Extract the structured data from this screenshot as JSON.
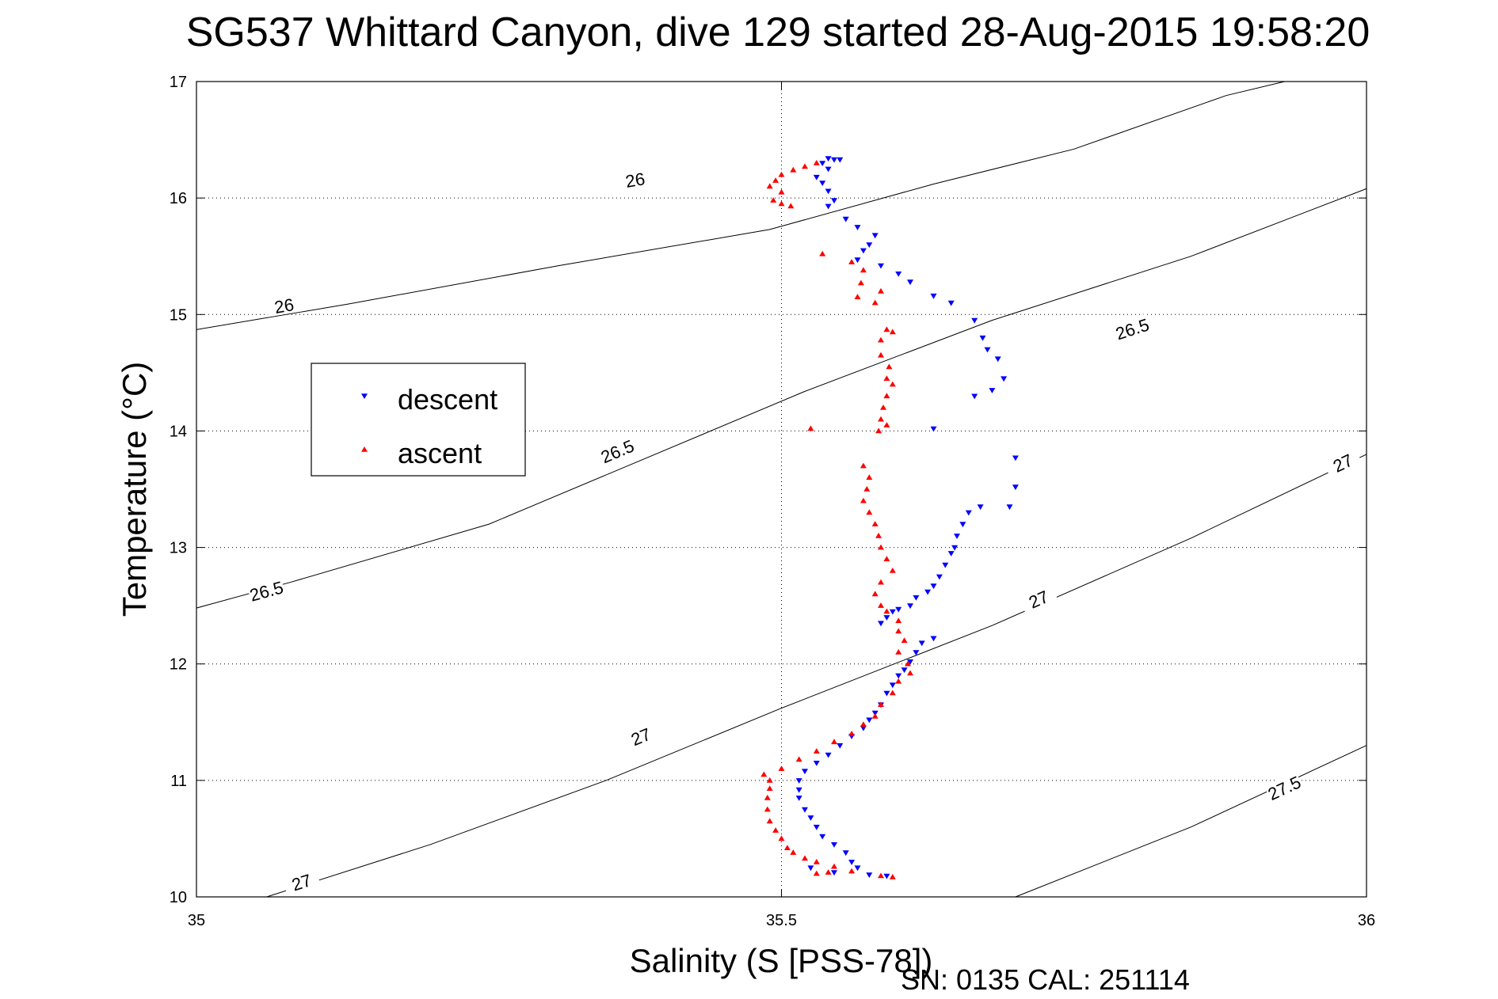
{
  "chart_data": {
    "type": "scatter",
    "title": "SG537 Whittard Canyon, dive 129 started 28-Aug-2015 19:58:20",
    "xlabel": "Salinity (S [PSS-78])",
    "ylabel": "Temperature (°C)",
    "xlim": [
      35,
      36
    ],
    "ylim": [
      10,
      17
    ],
    "x_ticks": [
      "35",
      "35.5",
      "36"
    ],
    "y_ticks": [
      "10",
      "11",
      "12",
      "13",
      "14",
      "15",
      "16",
      "17"
    ],
    "grid": true,
    "legend_position": "upper-left",
    "footer_text": "SN: 0135  CAL: 251114",
    "isopycnals": [
      {
        "label": "26",
        "points": [
          [
            35,
            14.87
          ],
          [
            35.13,
            15.09
          ],
          [
            35.31,
            15.42
          ],
          [
            35.49,
            15.73
          ],
          [
            35.63,
            16.12
          ],
          [
            35.75,
            16.42
          ],
          [
            35.88,
            16.88
          ],
          [
            35.93,
            17.0
          ]
        ],
        "labels_at": [
          [
            35.075,
            15.07
          ],
          [
            35.375,
            16.15
          ]
        ]
      },
      {
        "label": "26.5",
        "points": [
          [
            35,
            12.48
          ],
          [
            35.08,
            12.7
          ],
          [
            35.25,
            13.2
          ],
          [
            35.52,
            14.34
          ],
          [
            35.68,
            14.95
          ],
          [
            35.85,
            15.5
          ],
          [
            36,
            16.08
          ]
        ],
        "labels_at": [
          [
            35.06,
            12.62
          ],
          [
            35.36,
            13.82
          ],
          [
            35.8,
            14.87
          ]
        ]
      },
      {
        "label": "27",
        "points": [
          [
            35.06,
            10.0
          ],
          [
            35.2,
            10.45
          ],
          [
            35.35,
            11.0
          ],
          [
            35.5,
            11.62
          ],
          [
            35.68,
            12.33
          ],
          [
            35.85,
            13.08
          ],
          [
            36,
            13.8
          ]
        ],
        "labels_at": [
          [
            35.09,
            10.12
          ],
          [
            35.38,
            11.37
          ],
          [
            35.72,
            12.55
          ],
          [
            35.98,
            13.72
          ]
        ]
      },
      {
        "label": "27.5",
        "points": [
          [
            35.7,
            10.0
          ],
          [
            35.85,
            10.6
          ],
          [
            36,
            11.3
          ]
        ],
        "labels_at": [
          [
            35.93,
            10.93
          ]
        ]
      }
    ],
    "series": [
      {
        "name": "descent",
        "color": "#0000ff",
        "marker": "triangle-down",
        "points": [
          [
            35.54,
            16.34
          ],
          [
            35.545,
            16.33
          ],
          [
            35.55,
            16.33
          ],
          [
            35.535,
            16.3
          ],
          [
            35.54,
            16.25
          ],
          [
            35.53,
            16.18
          ],
          [
            35.535,
            16.13
          ],
          [
            35.54,
            16.06
          ],
          [
            35.545,
            15.98
          ],
          [
            35.54,
            15.93
          ],
          [
            35.555,
            15.82
          ],
          [
            35.565,
            15.75
          ],
          [
            35.58,
            15.68
          ],
          [
            35.575,
            15.6
          ],
          [
            35.57,
            15.55
          ],
          [
            35.565,
            15.47
          ],
          [
            35.585,
            15.42
          ],
          [
            35.6,
            15.35
          ],
          [
            35.61,
            15.28
          ],
          [
            35.63,
            15.16
          ],
          [
            35.645,
            15.1
          ],
          [
            35.665,
            14.95
          ],
          [
            35.672,
            14.8
          ],
          [
            35.676,
            14.7
          ],
          [
            35.685,
            14.62
          ],
          [
            35.69,
            14.45
          ],
          [
            35.68,
            14.35
          ],
          [
            35.665,
            14.3
          ],
          [
            35.63,
            14.02
          ],
          [
            35.7,
            13.77
          ],
          [
            35.7,
            13.52
          ],
          [
            35.695,
            13.35
          ],
          [
            35.67,
            13.35
          ],
          [
            35.66,
            13.3
          ],
          [
            35.655,
            13.2
          ],
          [
            35.65,
            13.1
          ],
          [
            35.648,
            13.0
          ],
          [
            35.645,
            12.95
          ],
          [
            35.64,
            12.85
          ],
          [
            35.635,
            12.75
          ],
          [
            35.63,
            12.67
          ],
          [
            35.625,
            12.62
          ],
          [
            35.615,
            12.57
          ],
          [
            35.61,
            12.5
          ],
          [
            35.6,
            12.47
          ],
          [
            35.595,
            12.45
          ],
          [
            35.59,
            12.4
          ],
          [
            35.585,
            12.35
          ],
          [
            35.63,
            12.22
          ],
          [
            35.62,
            12.18
          ],
          [
            35.615,
            12.1
          ],
          [
            35.61,
            12.02
          ],
          [
            35.605,
            11.95
          ],
          [
            35.6,
            11.9
          ],
          [
            35.595,
            11.82
          ],
          [
            35.59,
            11.75
          ],
          [
            35.585,
            11.65
          ],
          [
            35.58,
            11.58
          ],
          [
            35.575,
            11.52
          ],
          [
            35.57,
            11.45
          ],
          [
            35.56,
            11.38
          ],
          [
            35.55,
            11.3
          ],
          [
            35.54,
            11.22
          ],
          [
            35.53,
            11.15
          ],
          [
            35.52,
            11.08
          ],
          [
            35.515,
            11.0
          ],
          [
            35.515,
            10.92
          ],
          [
            35.515,
            10.85
          ],
          [
            35.52,
            10.75
          ],
          [
            35.525,
            10.68
          ],
          [
            35.53,
            10.6
          ],
          [
            35.535,
            10.52
          ],
          [
            35.545,
            10.45
          ],
          [
            35.555,
            10.38
          ],
          [
            35.56,
            10.3
          ],
          [
            35.565,
            10.25
          ],
          [
            35.575,
            10.19
          ],
          [
            35.59,
            10.18
          ],
          [
            35.525,
            10.25
          ],
          [
            35.545,
            10.21
          ]
        ]
      },
      {
        "name": "ascent",
        "color": "#ff0000",
        "marker": "triangle-up",
        "points": [
          [
            35.53,
            16.3
          ],
          [
            35.52,
            16.27
          ],
          [
            35.51,
            16.24
          ],
          [
            35.5,
            16.2
          ],
          [
            35.495,
            16.15
          ],
          [
            35.49,
            16.1
          ],
          [
            35.5,
            16.05
          ],
          [
            35.493,
            15.98
          ],
          [
            35.508,
            15.93
          ],
          [
            35.5,
            15.95
          ],
          [
            35.535,
            15.52
          ],
          [
            35.56,
            15.45
          ],
          [
            35.57,
            15.38
          ],
          [
            35.568,
            15.27
          ],
          [
            35.565,
            15.15
          ],
          [
            35.585,
            15.2
          ],
          [
            35.58,
            15.1
          ],
          [
            35.59,
            14.87
          ],
          [
            35.595,
            14.85
          ],
          [
            35.585,
            14.78
          ],
          [
            35.585,
            14.65
          ],
          [
            35.592,
            14.55
          ],
          [
            35.59,
            14.45
          ],
          [
            35.595,
            14.4
          ],
          [
            35.59,
            14.3
          ],
          [
            35.587,
            14.2
          ],
          [
            35.585,
            14.1
          ],
          [
            35.59,
            14.05
          ],
          [
            35.583,
            14.0
          ],
          [
            35.525,
            14.02
          ],
          [
            35.57,
            13.7
          ],
          [
            35.575,
            13.6
          ],
          [
            35.573,
            13.5
          ],
          [
            35.57,
            13.4
          ],
          [
            35.575,
            13.3
          ],
          [
            35.58,
            13.2
          ],
          [
            35.583,
            13.1
          ],
          [
            35.585,
            13.0
          ],
          [
            35.59,
            12.9
          ],
          [
            35.595,
            12.8
          ],
          [
            35.585,
            12.7
          ],
          [
            35.58,
            12.6
          ],
          [
            35.585,
            12.5
          ],
          [
            35.59,
            12.45
          ],
          [
            35.6,
            12.37
          ],
          [
            35.6,
            12.28
          ],
          [
            35.605,
            12.2
          ],
          [
            35.6,
            12.1
          ],
          [
            35.608,
            12.0
          ],
          [
            35.61,
            11.92
          ],
          [
            35.6,
            11.85
          ],
          [
            35.595,
            11.75
          ],
          [
            35.585,
            11.65
          ],
          [
            35.58,
            11.55
          ],
          [
            35.57,
            11.48
          ],
          [
            35.56,
            11.4
          ],
          [
            35.545,
            11.33
          ],
          [
            35.53,
            11.25
          ],
          [
            35.515,
            11.18
          ],
          [
            35.5,
            11.1
          ],
          [
            35.485,
            11.05
          ],
          [
            35.49,
            11.0
          ],
          [
            35.49,
            10.93
          ],
          [
            35.488,
            10.85
          ],
          [
            35.488,
            10.75
          ],
          [
            35.49,
            10.65
          ],
          [
            35.495,
            10.57
          ],
          [
            35.5,
            10.5
          ],
          [
            35.505,
            10.42
          ],
          [
            35.51,
            10.38
          ],
          [
            35.52,
            10.33
          ],
          [
            35.53,
            10.3
          ],
          [
            35.545,
            10.26
          ],
          [
            35.56,
            10.22
          ],
          [
            35.585,
            10.18
          ],
          [
            35.595,
            10.17
          ],
          [
            35.54,
            10.21
          ],
          [
            35.53,
            10.2
          ]
        ]
      }
    ]
  }
}
